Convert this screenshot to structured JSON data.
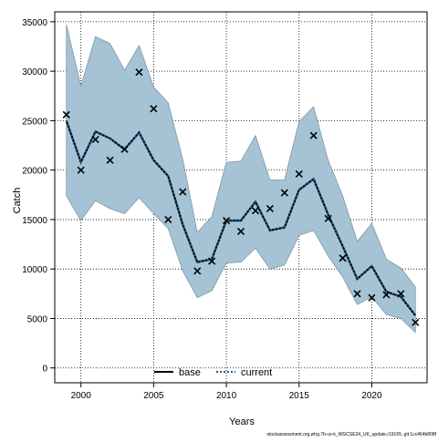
{
  "chart_data": {
    "type": "line",
    "xlabel": "Years",
    "ylabel": "Catch",
    "xlim": [
      1998.2,
      2023.8
    ],
    "ylim": [
      -1500,
      36000
    ],
    "grid": true,
    "x_ticks": [
      2000,
      2005,
      2010,
      2015,
      2020
    ],
    "y_ticks": [
      0,
      5000,
      10000,
      15000,
      20000,
      25000,
      30000,
      35000
    ],
    "x_tick_labels": [
      "2000",
      "2005",
      "2010",
      "2015",
      "2020"
    ],
    "y_tick_labels": [
      "0",
      "5000",
      "10000",
      "15000",
      "20000",
      "25000",
      "30000",
      "35000"
    ],
    "legend_position": "bottom-center",
    "legend": [
      {
        "label": "base",
        "style": "solid",
        "color": "#000000"
      },
      {
        "label": "current",
        "style": "dotted",
        "color": "#1b5a8a"
      }
    ],
    "band_color": "#a5c3d4",
    "band_stroke": "#7f97a5",
    "years": [
      1999,
      2000,
      2001,
      2002,
      2003,
      2004,
      2005,
      2006,
      2007,
      2008,
      2009,
      2010,
      2011,
      2012,
      2013,
      2014,
      2015,
      2016,
      2017,
      2018,
      2019,
      2020,
      2021,
      2022,
      2023
    ],
    "series": [
      {
        "name": "current",
        "values": [
          25000,
          20800,
          23900,
          23200,
          22100,
          23800,
          21000,
          19400,
          14500,
          10700,
          11000,
          14900,
          14900,
          16800,
          13900,
          14200,
          18000,
          19100,
          15500,
          12300,
          9000,
          10300,
          7700,
          7200,
          5300
        ]
      },
      {
        "name": "upper",
        "values": [
          34700,
          28500,
          33500,
          32800,
          30100,
          32600,
          28400,
          26800,
          21100,
          13700,
          15300,
          20800,
          20900,
          23500,
          19000,
          19000,
          24900,
          26400,
          21000,
          17400,
          12800,
          14600,
          11000,
          10100,
          8200
        ]
      },
      {
        "name": "lower",
        "values": [
          17400,
          14900,
          16900,
          16100,
          15600,
          17200,
          15600,
          14100,
          9800,
          7100,
          7800,
          10600,
          10700,
          12100,
          10000,
          10400,
          13400,
          13900,
          11300,
          9200,
          6400,
          7200,
          5400,
          5000,
          3600
        ]
      },
      {
        "name": "observed",
        "values": [
          25600,
          20000,
          23100,
          21000,
          22100,
          29900,
          26200,
          15000,
          17800,
          9800,
          10800,
          14900,
          13800,
          15900,
          16100,
          17700,
          19600,
          23500,
          15100,
          11100,
          7500,
          7100,
          7400,
          7500,
          4600
        ]
      }
    ],
    "footnote": "stockassessment.org,whg.7b-ce-k_WGCSE24_UK_update,r19165..git:1cc464b808f"
  }
}
